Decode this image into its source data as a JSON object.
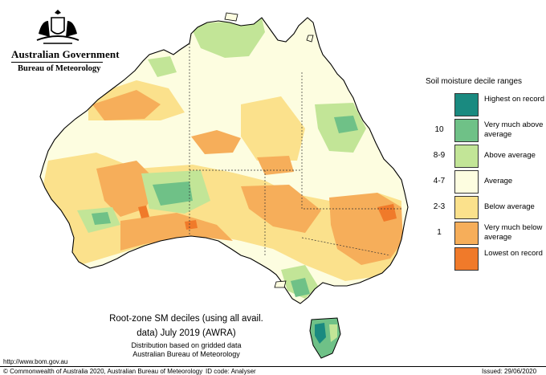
{
  "header": {
    "government": "Australian Government",
    "bureau": "Bureau of Meteorology"
  },
  "legend": {
    "title": "Soil moisture decile ranges",
    "items": [
      {
        "code": "",
        "label": "Highest on record",
        "color": "#1a8a80"
      },
      {
        "code": "10",
        "label": "Very much above average",
        "color": "#6fc187"
      },
      {
        "code": "8-9",
        "label": "Above average",
        "color": "#c2e597"
      },
      {
        "code": "4-7",
        "label": "Average",
        "color": "#fdfde0"
      },
      {
        "code": "2-3",
        "label": "Below average",
        "color": "#fbe18c"
      },
      {
        "code": "1",
        "label": "Very much below average",
        "color": "#f6ae5a"
      },
      {
        "code": "",
        "label": "Lowest on record",
        "color": "#f07a2a"
      }
    ]
  },
  "map": {
    "title_line1": "Root-zone SM deciles (using all avail.",
    "title_line2": "data) July 2019 (AWRA)",
    "subtitle1": "Distribution based on gridded data",
    "subtitle2": "Australian Bureau of Meteorology"
  },
  "footer": {
    "url": "http://www.bom.gov.au",
    "copyright": "© Commonwealth of Australia 2020, Australian Bureau of Meteorology",
    "id_code": "ID code: Analyser",
    "issued": "Issued: 29/06/2020"
  }
}
